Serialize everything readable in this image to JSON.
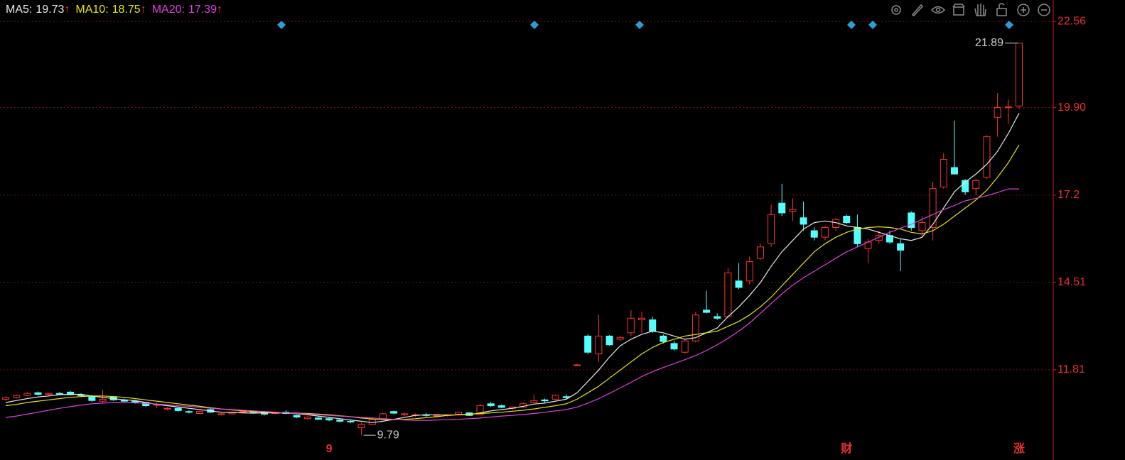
{
  "chart_data": {
    "type": "candlestick",
    "legend": [
      {
        "label": "MA5:",
        "value": 19.73,
        "trend": "↑"
      },
      {
        "label": "MA10:",
        "value": 18.75,
        "trend": "↑"
      },
      {
        "label": "MA20:",
        "value": 17.39,
        "trend": "↑"
      }
    ],
    "categories": [
      null,
      null,
      null,
      null,
      null,
      null,
      null,
      null,
      null,
      null,
      null,
      null,
      null,
      null,
      null,
      null,
      null,
      null,
      null,
      null,
      null,
      null,
      null,
      null,
      null,
      null,
      null,
      null,
      null,
      null,
      "9",
      null,
      null,
      null,
      null,
      null,
      null,
      null,
      null,
      null,
      null,
      null,
      null,
      null,
      null,
      null,
      null,
      null,
      null,
      null,
      null,
      null,
      null,
      null,
      null,
      null,
      null,
      null,
      null,
      null,
      null,
      null,
      null,
      null,
      null,
      null,
      null,
      null,
      null,
      null,
      null,
      null,
      null,
      null,
      null,
      null,
      null,
      null,
      "财",
      null,
      null,
      null,
      null,
      null,
      null,
      null,
      null,
      null,
      null,
      null,
      null,
      null,
      null,
      null,
      "涨"
    ],
    "open": [
      10.9,
      10.95,
      11.02,
      11.1,
      11.05,
      11.08,
      11.12,
      11.04,
      11.0,
      10.84,
      10.98,
      10.88,
      10.84,
      10.8,
      10.72,
      10.6,
      10.62,
      10.52,
      10.46,
      10.58,
      10.42,
      10.45,
      10.5,
      10.52,
      10.5,
      10.46,
      10.5,
      10.4,
      10.3,
      10.32,
      10.3,
      10.26,
      10.22,
      10.02,
      10.12,
      10.3,
      10.52,
      10.42,
      10.4,
      10.42,
      10.38,
      10.4,
      10.44,
      10.48,
      10.42,
      10.76,
      10.7,
      10.62,
      10.66,
      10.8,
      10.88,
      10.9,
      10.98,
      11.95,
      12.85,
      12.3,
      12.85,
      12.75,
      12.95,
      13.35,
      13.35,
      12.85,
      12.62,
      12.35,
      12.7,
      13.65,
      13.45,
      13.45,
      14.55,
      14.55,
      15.25,
      15.7,
      16.95,
      16.7,
      16.5,
      16.1,
      15.9,
      16.2,
      16.55,
      16.2,
      15.55,
      15.8,
      15.95,
      15.7,
      16.65,
      16.1,
      16.2,
      17.45,
      18.05,
      17.65,
      17.4,
      17.75,
      19.6,
      19.9,
      19.95
    ],
    "high": [
      10.98,
      11.05,
      11.12,
      11.14,
      11.1,
      11.12,
      11.15,
      11.08,
      11.04,
      11.2,
      11.0,
      10.92,
      10.88,
      10.82,
      10.8,
      10.66,
      10.64,
      10.56,
      10.54,
      10.62,
      10.48,
      10.52,
      10.55,
      10.55,
      10.54,
      10.52,
      10.56,
      10.42,
      10.38,
      10.36,
      10.34,
      10.28,
      10.26,
      10.18,
      10.3,
      10.48,
      10.55,
      10.48,
      10.46,
      10.48,
      10.42,
      10.44,
      10.52,
      10.5,
      10.75,
      10.82,
      10.74,
      10.68,
      10.8,
      11.05,
      10.92,
      11.05,
      11.05,
      12.0,
      12.9,
      13.5,
      12.88,
      12.85,
      13.65,
      13.6,
      13.45,
      12.9,
      12.7,
      12.75,
      13.6,
      14.25,
      13.55,
      14.95,
      15.1,
      15.3,
      15.7,
      16.9,
      17.55,
      17.1,
      17.0,
      16.2,
      16.25,
      16.5,
      16.6,
      16.6,
      15.85,
      16.1,
      16.1,
      15.85,
      16.7,
      16.55,
      17.6,
      18.5,
      19.5,
      17.7,
      17.7,
      19.05,
      20.35,
      20.15,
      21.89
    ],
    "low": [
      10.85,
      10.92,
      11.0,
      11.02,
      11.0,
      11.03,
      11.02,
      10.98,
      10.82,
      10.78,
      10.85,
      10.8,
      10.76,
      10.66,
      10.62,
      10.56,
      10.52,
      10.46,
      10.44,
      10.48,
      10.4,
      10.43,
      10.46,
      10.48,
      10.4,
      10.44,
      10.44,
      10.32,
      10.28,
      10.26,
      10.22,
      10.18,
      10.16,
      9.79,
      10.1,
      10.28,
      10.44,
      10.38,
      10.36,
      10.36,
      10.34,
      10.36,
      10.4,
      10.38,
      10.4,
      10.66,
      10.62,
      10.58,
      10.64,
      10.78,
      10.8,
      10.88,
      10.9,
      11.92,
      12.3,
      12.05,
      12.55,
      12.7,
      12.85,
      12.95,
      12.95,
      12.62,
      12.4,
      12.3,
      12.65,
      13.55,
      13.35,
      13.4,
      14.3,
      14.45,
      15.2,
      15.6,
      16.55,
      16.4,
      16.1,
      15.8,
      15.8,
      16.1,
      16.3,
      15.6,
      15.1,
      15.7,
      15.7,
      14.85,
      16.1,
      15.9,
      15.8,
      17.4,
      17.85,
      17.2,
      17.2,
      17.7,
      19.0,
      19.4,
      19.85
    ],
    "close": [
      10.95,
      11.02,
      11.08,
      11.05,
      11.08,
      11.06,
      11.04,
      11.01,
      10.86,
      10.9,
      10.88,
      10.84,
      10.8,
      10.7,
      10.74,
      10.62,
      10.55,
      10.5,
      10.52,
      10.5,
      10.45,
      10.5,
      10.52,
      10.5,
      10.44,
      10.5,
      10.46,
      10.35,
      10.35,
      10.28,
      10.26,
      10.22,
      10.2,
      10.12,
      10.28,
      10.45,
      10.47,
      10.45,
      10.42,
      10.4,
      10.4,
      10.42,
      10.5,
      10.4,
      10.7,
      10.7,
      10.65,
      10.66,
      10.76,
      10.85,
      10.85,
      11.02,
      10.95,
      11.96,
      12.35,
      12.85,
      12.58,
      12.8,
      13.4,
      13.4,
      13.0,
      12.68,
      12.45,
      12.7,
      13.5,
      13.58,
      13.4,
      14.8,
      14.35,
      15.15,
      15.6,
      16.6,
      16.65,
      16.75,
      16.3,
      15.9,
      16.2,
      16.45,
      16.35,
      15.7,
      15.75,
      15.95,
      15.75,
      15.5,
      16.2,
      16.35,
      17.4,
      18.3,
      17.85,
      17.3,
      17.65,
      19.0,
      19.9,
      19.92,
      21.89
    ],
    "up_color": "#ff3232",
    "down_color": "#54ffff",
    "series": [
      {
        "name": "MA5",
        "color": "#e8e8e8",
        "values": [
          10.8,
          10.86,
          10.92,
          10.97,
          11.0,
          11.04,
          11.05,
          11.05,
          11.0,
          10.96,
          10.92,
          10.88,
          10.86,
          10.8,
          10.74,
          10.7,
          10.66,
          10.62,
          10.58,
          10.54,
          10.5,
          10.49,
          10.48,
          10.47,
          10.48,
          10.48,
          10.48,
          10.45,
          10.42,
          10.38,
          10.34,
          10.3,
          10.26,
          10.22,
          10.18,
          10.22,
          10.28,
          10.34,
          10.4,
          10.42,
          10.42,
          10.41,
          10.42,
          10.42,
          10.48,
          10.54,
          10.58,
          10.62,
          10.68,
          10.75,
          10.78,
          10.84,
          10.9,
          11.1,
          11.45,
          11.8,
          12.2,
          12.55,
          12.75,
          12.9,
          13.0,
          12.95,
          12.85,
          12.75,
          12.8,
          12.95,
          13.1,
          13.45,
          13.75,
          14.1,
          14.5,
          15.0,
          15.45,
          15.8,
          16.15,
          16.35,
          16.4,
          16.35,
          16.25,
          16.2,
          16.15,
          16.05,
          15.95,
          15.85,
          15.8,
          15.9,
          16.3,
          16.8,
          17.3,
          17.6,
          17.85,
          18.15,
          18.55,
          19.1,
          19.73
        ]
      },
      {
        "name": "MA10",
        "color": "#e6e600",
        "values": [
          10.7,
          10.74,
          10.8,
          10.84,
          10.88,
          10.92,
          10.96,
          10.98,
          11.0,
          11.0,
          10.98,
          10.96,
          10.92,
          10.88,
          10.84,
          10.8,
          10.76,
          10.72,
          10.68,
          10.64,
          10.6,
          10.57,
          10.54,
          10.52,
          10.5,
          10.49,
          10.48,
          10.47,
          10.46,
          10.44,
          10.42,
          10.39,
          10.36,
          10.32,
          10.29,
          10.27,
          10.27,
          10.28,
          10.3,
          10.33,
          10.36,
          10.4,
          10.42,
          10.44,
          10.46,
          10.48,
          10.5,
          10.53,
          10.56,
          10.6,
          10.65,
          10.7,
          10.76,
          10.9,
          11.1,
          11.3,
          11.55,
          11.8,
          12.05,
          12.3,
          12.5,
          12.65,
          12.75,
          12.85,
          12.9,
          12.95,
          13.0,
          13.15,
          13.3,
          13.5,
          13.75,
          14.05,
          14.4,
          14.75,
          15.1,
          15.45,
          15.7,
          15.9,
          16.05,
          16.15,
          16.2,
          16.22,
          16.2,
          16.15,
          16.05,
          16.0,
          16.1,
          16.3,
          16.55,
          16.8,
          17.05,
          17.35,
          17.75,
          18.2,
          18.75
        ]
      },
      {
        "name": "MA20",
        "color": "#e040e0",
        "values": [
          10.34,
          10.38,
          10.44,
          10.5,
          10.56,
          10.62,
          10.67,
          10.72,
          10.76,
          10.78,
          10.8,
          10.8,
          10.79,
          10.77,
          10.75,
          10.73,
          10.7,
          10.68,
          10.65,
          10.62,
          10.6,
          10.58,
          10.56,
          10.54,
          10.52,
          10.5,
          10.48,
          10.46,
          10.44,
          10.42,
          10.4,
          10.38,
          10.36,
          10.34,
          10.32,
          10.3,
          10.28,
          10.26,
          10.25,
          10.25,
          10.26,
          10.27,
          10.28,
          10.3,
          10.32,
          10.35,
          10.38,
          10.4,
          10.43,
          10.46,
          10.5,
          10.54,
          10.58,
          10.66,
          10.78,
          10.92,
          11.08,
          11.25,
          11.42,
          11.6,
          11.75,
          11.88,
          12.0,
          12.12,
          12.25,
          12.4,
          12.58,
          12.78,
          13.0,
          13.25,
          13.55,
          13.85,
          14.15,
          14.42,
          14.65,
          14.85,
          15.05,
          15.25,
          15.45,
          15.6,
          15.75,
          15.9,
          16.05,
          16.18,
          16.3,
          16.45,
          16.6,
          16.75,
          16.88,
          17.02,
          17.1,
          17.18,
          17.28,
          17.39,
          17.39
        ]
      }
    ],
    "max_label": "21.89",
    "min_label": "9.79",
    "ylim": [
      9.2,
      23.22
    ],
    "yticks": [
      11.81,
      14.51,
      17.2,
      {
        "value": 19.9,
        "label": "19.90"
      },
      22.56
    ],
    "grid": true
  }
}
